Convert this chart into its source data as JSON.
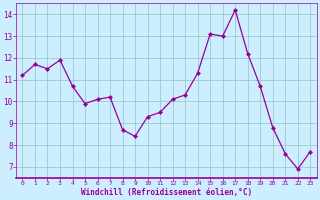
{
  "x": [
    0,
    1,
    2,
    3,
    4,
    5,
    6,
    7,
    8,
    9,
    10,
    11,
    12,
    13,
    14,
    15,
    16,
    17,
    18,
    19,
    20,
    21,
    22,
    23
  ],
  "y": [
    11.2,
    11.7,
    11.5,
    11.9,
    10.7,
    9.9,
    10.1,
    10.2,
    8.7,
    8.4,
    9.3,
    9.5,
    10.1,
    10.3,
    11.3,
    13.1,
    13.0,
    14.2,
    12.2,
    10.7,
    8.8,
    7.6,
    6.9,
    7.7
  ],
  "line_color": "#990099",
  "marker_color": "#990099",
  "background_color": "#cceeff",
  "grid_color": "#99cccc",
  "xlabel": "Windchill (Refroidissement éolien,°C)",
  "tick_color": "#990099",
  "ylim": [
    6.5,
    14.5
  ],
  "yticks": [
    7,
    8,
    9,
    10,
    11,
    12,
    13,
    14
  ],
  "xticks": [
    0,
    1,
    2,
    3,
    4,
    5,
    6,
    7,
    8,
    9,
    10,
    11,
    12,
    13,
    14,
    15,
    16,
    17,
    18,
    19,
    20,
    21,
    22,
    23
  ],
  "xlim": [
    -0.5,
    23.5
  ]
}
